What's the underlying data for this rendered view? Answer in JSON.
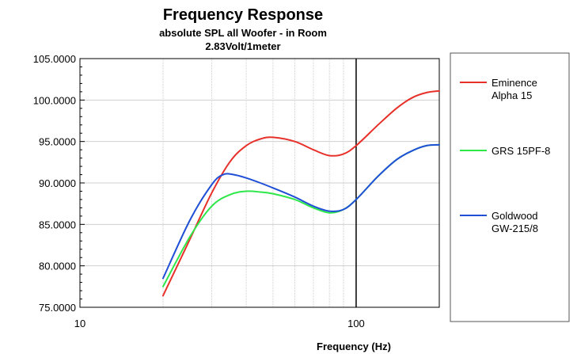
{
  "chart_data": {
    "type": "line",
    "title": "Frequency Response",
    "subtitle_lines": [
      "absolute SPL all Woofer - in Room",
      "2.83Volt/1meter"
    ],
    "xlabel": "Frequency (Hz)",
    "ylabel": "",
    "x_scale": "log",
    "xlim": [
      10,
      200
    ],
    "ylim": [
      75,
      105
    ],
    "x_ticks": [
      10,
      100
    ],
    "x_tick_labels": [
      "10",
      "100"
    ],
    "y_ticks": [
      75,
      80,
      85,
      90,
      95,
      100,
      105
    ],
    "y_tick_labels": [
      "75.0000",
      "80.0000",
      "85.0000",
      "90.0000",
      "95.0000",
      "100.0000",
      "105.0000"
    ],
    "marker_line_x": 100,
    "grid": true,
    "legend_position": "right",
    "series": [
      {
        "name_lines": [
          "Eminence",
          "Alpha 15"
        ],
        "color": "#e8302a",
        "points": [
          [
            20,
            76.4
          ],
          [
            25,
            83.2
          ],
          [
            30,
            88.8
          ],
          [
            35,
            92.6
          ],
          [
            40,
            94.5
          ],
          [
            45,
            95.3
          ],
          [
            50,
            95.5
          ],
          [
            60,
            95.0
          ],
          [
            70,
            94.0
          ],
          [
            80,
            93.3
          ],
          [
            90,
            93.5
          ],
          [
            100,
            94.5
          ],
          [
            120,
            97.0
          ],
          [
            140,
            99.0
          ],
          [
            160,
            100.3
          ],
          [
            180,
            100.9
          ],
          [
            200,
            101.1
          ]
        ]
      },
      {
        "name_lines": [
          "GRS 15PF-8"
        ],
        "color": "#2ee84a",
        "points": [
          [
            20,
            77.5
          ],
          [
            25,
            83.5
          ],
          [
            30,
            87.2
          ],
          [
            35,
            88.6
          ],
          [
            40,
            89.0
          ],
          [
            45,
            88.9
          ],
          [
            50,
            88.7
          ],
          [
            60,
            88.0
          ],
          [
            70,
            87.0
          ],
          [
            80,
            86.4
          ],
          [
            90,
            86.8
          ],
          [
            100,
            88.0
          ],
          [
            120,
            90.8
          ],
          [
            140,
            92.8
          ],
          [
            160,
            93.9
          ],
          [
            180,
            94.5
          ],
          [
            200,
            94.6
          ]
        ]
      },
      {
        "name_lines": [
          "Goldwood",
          "GW-215/8"
        ],
        "color": "#1f4fd6",
        "points": [
          [
            20,
            78.5
          ],
          [
            25,
            85.5
          ],
          [
            30,
            89.8
          ],
          [
            33,
            91.0
          ],
          [
            36,
            91.0
          ],
          [
            40,
            90.6
          ],
          [
            45,
            90.0
          ],
          [
            50,
            89.4
          ],
          [
            60,
            88.3
          ],
          [
            70,
            87.2
          ],
          [
            80,
            86.6
          ],
          [
            90,
            86.8
          ],
          [
            100,
            88.0
          ],
          [
            120,
            90.8
          ],
          [
            140,
            92.8
          ],
          [
            160,
            93.9
          ],
          [
            180,
            94.5
          ],
          [
            200,
            94.6
          ]
        ]
      }
    ]
  }
}
